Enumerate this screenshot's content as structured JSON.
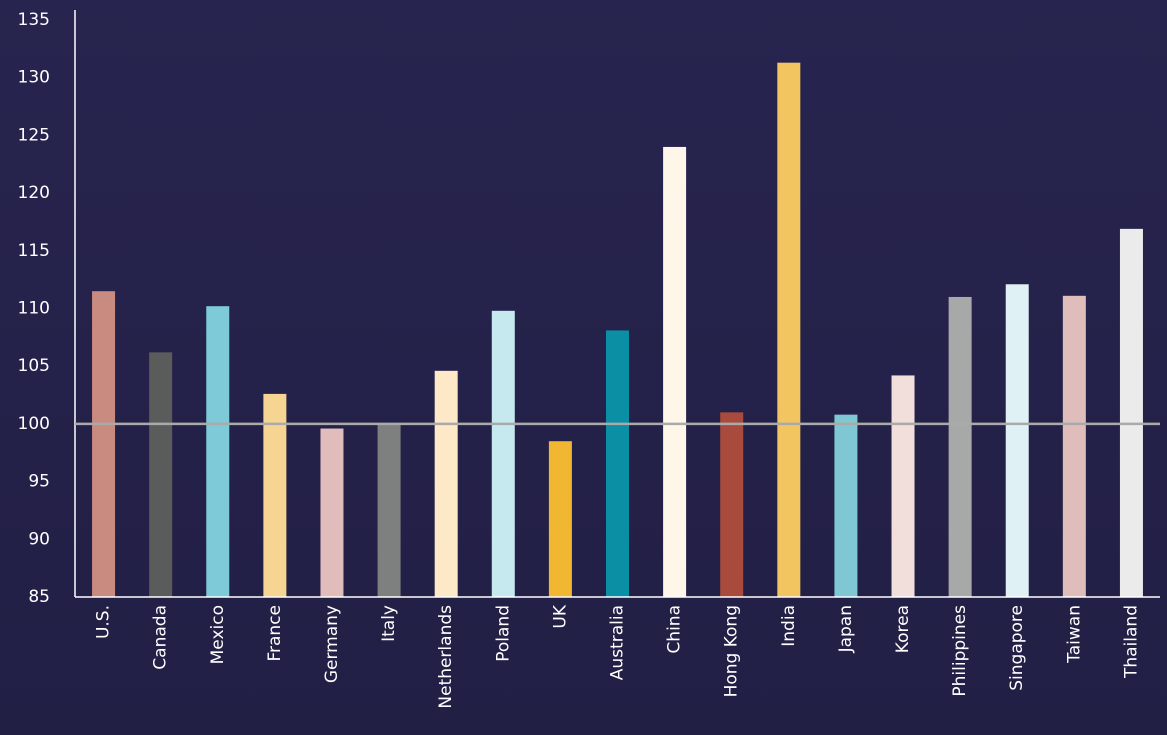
{
  "chart_data": {
    "type": "bar",
    "categories": [
      "U.S.",
      "Canada",
      "Mexico",
      "France",
      "Germany",
      "Italy",
      "Netherlands",
      "Poland",
      "UK",
      "Australia",
      "China",
      "Hong Kong",
      "India",
      "Japan",
      "Korea",
      "Philippines",
      "Singapore",
      "Taiwan",
      "Thailand"
    ],
    "values": [
      111.5,
      106.2,
      110.2,
      102.6,
      99.6,
      100,
      104.6,
      109.8,
      98.5,
      108.1,
      124,
      101,
      131.3,
      100.8,
      104.2,
      111,
      112.1,
      111.1,
      116.9
    ],
    "colors": [
      "#c98a80",
      "#5a5c5c",
      "#7ecad8",
      "#f6d592",
      "#e0bcbb",
      "#7d807f",
      "#fde9c8",
      "#c6e9ef",
      "#f1b733",
      "#0a8fa5",
      "#fff6ea",
      "#a84b3c",
      "#f3c561",
      "#7fc7d3",
      "#f2dfdc",
      "#a7a9a9",
      "#e0f1f6",
      "#dfbdbb",
      "#ebebeb"
    ],
    "ylim": [
      85,
      135
    ],
    "yticks": [
      85,
      90,
      95,
      100,
      105,
      110,
      115,
      120,
      125,
      130,
      135
    ],
    "reference_line": 100,
    "grid": false
  }
}
